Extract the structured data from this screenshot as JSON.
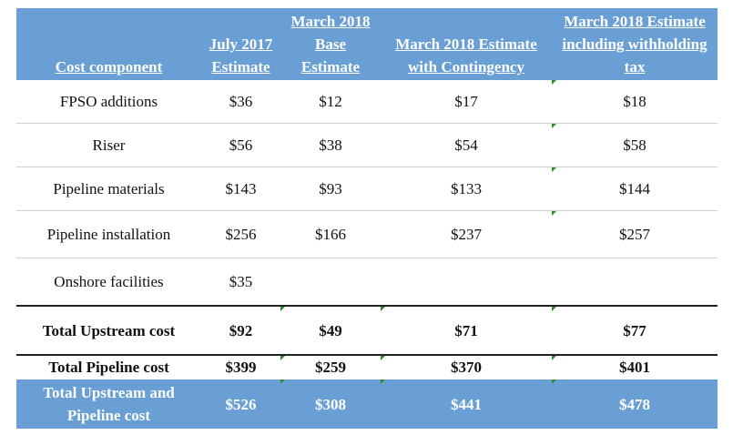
{
  "table": {
    "headers": [
      "Cost component",
      "July 2017 Estimate",
      "March 2018 Base Estimate",
      "March 2018 Estimate with Contingency",
      "March 2018 Estimate including withholding tax"
    ],
    "rows": [
      {
        "component": "FPSO additions",
        "values": [
          "$36",
          "$12",
          "$17",
          "$18"
        ]
      },
      {
        "component": "Riser",
        "values": [
          "$56",
          "$38",
          "$54",
          "$58"
        ]
      },
      {
        "component": "Pipeline materials",
        "values": [
          "$143",
          "$93",
          "$133",
          "$144"
        ]
      },
      {
        "component": "Pipeline installation",
        "values": [
          "$256",
          "$166",
          "$237",
          "$257"
        ]
      },
      {
        "component": "Onshore facilities",
        "values": [
          "$35",
          "",
          "",
          ""
        ]
      },
      {
        "component": "Total Upstream cost",
        "values": [
          "$92",
          "$49",
          "$71",
          "$77"
        ]
      },
      {
        "component": "Total Pipeline cost",
        "values": [
          "$399",
          "$259",
          "$370",
          "$401"
        ]
      },
      {
        "component": "Total Upstream and Pipeline cost",
        "values": [
          "$526",
          "$308",
          "$441",
          "$478"
        ]
      }
    ]
  },
  "colors": {
    "header_bg": "#6a9fd6",
    "tick_marks": "#2e8b2e"
  }
}
